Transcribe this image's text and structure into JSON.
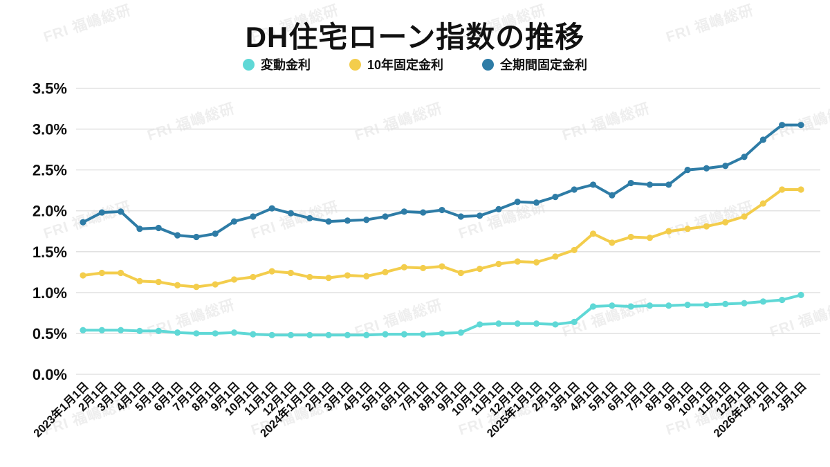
{
  "title": "DH住宅ローン指数の推移",
  "watermark_text": "FRI 福嶋総研",
  "chart_data": {
    "type": "line",
    "title": "DH住宅ローン指数の推移",
    "xlabel": "",
    "ylabel": "",
    "ylim": [
      0.0,
      3.5
    ],
    "ytick_step": 0.5,
    "ytick_labels": [
      "0.0%",
      "0.5%",
      "1.0%",
      "1.5%",
      "2.0%",
      "2.5%",
      "3.0%",
      "3.5%"
    ],
    "grid": "horizontal",
    "legend_position": "top-center",
    "categories": [
      "2023年1月1日",
      "2月1日",
      "3月1日",
      "4月1日",
      "5月1日",
      "6月1日",
      "7月1日",
      "8月1日",
      "9月1日",
      "10月1日",
      "11月1日",
      "12月1日",
      "2024年1月1日",
      "2月1日",
      "3月1日",
      "4月1日",
      "5月1日",
      "6月1日",
      "7月1日",
      "8月1日",
      "9月1日",
      "10月1日",
      "11月1日",
      "12月1日",
      "2025年1月1日",
      "2月1日",
      "3月1日",
      "4月1日",
      "5月1日",
      "6月1日",
      "7月1日",
      "8月1日",
      "9月1日",
      "10月1日",
      "11月1日",
      "12月1日",
      "2026年1月1日",
      "2月1日",
      "3月1日"
    ],
    "series": [
      {
        "name": "変動金利",
        "color": "#5fd8d6",
        "values": [
          0.54,
          0.54,
          0.54,
          0.53,
          0.53,
          0.51,
          0.5,
          0.5,
          0.51,
          0.49,
          0.48,
          0.48,
          0.48,
          0.48,
          0.48,
          0.48,
          0.49,
          0.49,
          0.49,
          0.5,
          0.51,
          0.61,
          0.62,
          0.62,
          0.62,
          0.61,
          0.64,
          0.83,
          0.84,
          0.83,
          0.84,
          0.84,
          0.85,
          0.85,
          0.86,
          0.87,
          0.89,
          0.91,
          0.97
        ]
      },
      {
        "name": "10年固定金利",
        "color": "#f3cd4c",
        "values": [
          1.21,
          1.24,
          1.24,
          1.14,
          1.13,
          1.09,
          1.07,
          1.1,
          1.16,
          1.19,
          1.26,
          1.24,
          1.19,
          1.18,
          1.21,
          1.2,
          1.25,
          1.31,
          1.3,
          1.32,
          1.24,
          1.29,
          1.35,
          1.38,
          1.37,
          1.44,
          1.52,
          1.72,
          1.61,
          1.68,
          1.67,
          1.75,
          1.78,
          1.81,
          1.86,
          1.93,
          2.09,
          2.26,
          2.26
        ]
      },
      {
        "name": "全期間固定金利",
        "color": "#2e7ca6",
        "values": [
          1.86,
          1.98,
          1.99,
          1.78,
          1.79,
          1.7,
          1.68,
          1.72,
          1.87,
          1.93,
          2.03,
          1.97,
          1.91,
          1.87,
          1.88,
          1.89,
          1.93,
          1.99,
          1.98,
          2.01,
          1.93,
          1.94,
          2.02,
          2.11,
          2.1,
          2.17,
          2.26,
          2.32,
          2.19,
          2.34,
          2.32,
          2.32,
          2.5,
          2.52,
          2.55,
          2.66,
          2.87,
          3.05,
          3.05
        ]
      }
    ]
  }
}
